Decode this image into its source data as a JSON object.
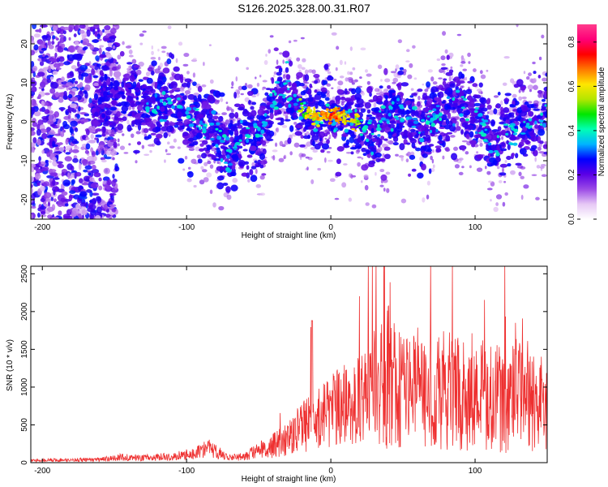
{
  "title": "S126.2025.328.00.31.R07",
  "chart_data": [
    {
      "type": "heatmap",
      "name": "spectrogram",
      "xlabel": "Height of straight line (km)",
      "ylabel": "Frequency (Hz)",
      "xlim": [
        -208,
        150
      ],
      "ylim": [
        -25,
        25
      ],
      "xticks": [
        -200,
        -100,
        0,
        100
      ],
      "yticks": [
        -20,
        -10,
        0,
        10,
        20
      ],
      "ridge": {
        "x": [
          -208,
          -190,
          -170,
          -150,
          -140,
          -130,
          -120,
          -110,
          -100,
          -90,
          -80,
          -70,
          -60,
          -50,
          -40,
          -30,
          -20,
          -10,
          0,
          10,
          20,
          28,
          35,
          45,
          55,
          65,
          75,
          85,
          95,
          105,
          112,
          120,
          130,
          140,
          150
        ],
        "y": [
          3,
          4,
          5,
          6,
          7,
          5,
          4,
          5,
          2,
          -1,
          -3,
          -8,
          -2,
          -4,
          6,
          7,
          3,
          1,
          2,
          1,
          0,
          -4,
          -1,
          3,
          1,
          -2,
          2,
          5,
          3,
          -1,
          -7,
          -3,
          -1,
          0,
          2
        ]
      },
      "colorbar": {
        "label": "Normalized spectral amplitude",
        "range": [
          0.0,
          0.88
        ],
        "ticks": [
          0.0,
          0.2,
          0.4,
          0.6,
          0.8
        ],
        "tick_labels": [
          "0.0",
          "0.2",
          "0.4",
          "0.6",
          "0.8"
        ],
        "colors": [
          "#ffffff",
          "#e6c8f5",
          "#9b4be6",
          "#5a00e6",
          "#0000ff",
          "#00b4ff",
          "#00ffb4",
          "#00e600",
          "#b4e600",
          "#ffe600",
          "#ff7800",
          "#ff0000",
          "#ff0078",
          "#ff3c8c"
        ]
      }
    },
    {
      "type": "line",
      "name": "snr",
      "xlabel": "Height of straight line (km)",
      "ylabel": "SNR (10 * v/v)",
      "xlim": [
        -208,
        150
      ],
      "ylim": [
        0,
        2600
      ],
      "xticks": [
        -200,
        -100,
        0,
        100
      ],
      "yticks": [
        0,
        500,
        1000,
        1500,
        2000,
        2500
      ],
      "color": "#ee3030",
      "envelope": {
        "x": [
          -208,
          -180,
          -160,
          -145,
          -130,
          -110,
          -95,
          -85,
          -80,
          -70,
          -60,
          -50,
          -40,
          -30,
          -20,
          -10,
          0,
          10,
          20,
          30,
          40,
          50,
          60,
          70,
          80,
          90,
          100,
          110,
          120,
          130,
          140,
          150
        ],
        "y": [
          35,
          40,
          45,
          80,
          70,
          90,
          130,
          220,
          160,
          80,
          90,
          180,
          250,
          350,
          520,
          620,
          750,
          850,
          900,
          1050,
          1150,
          1000,
          950,
          900,
          950,
          1000,
          850,
          900,
          800,
          900,
          800,
          850
        ]
      }
    }
  ]
}
